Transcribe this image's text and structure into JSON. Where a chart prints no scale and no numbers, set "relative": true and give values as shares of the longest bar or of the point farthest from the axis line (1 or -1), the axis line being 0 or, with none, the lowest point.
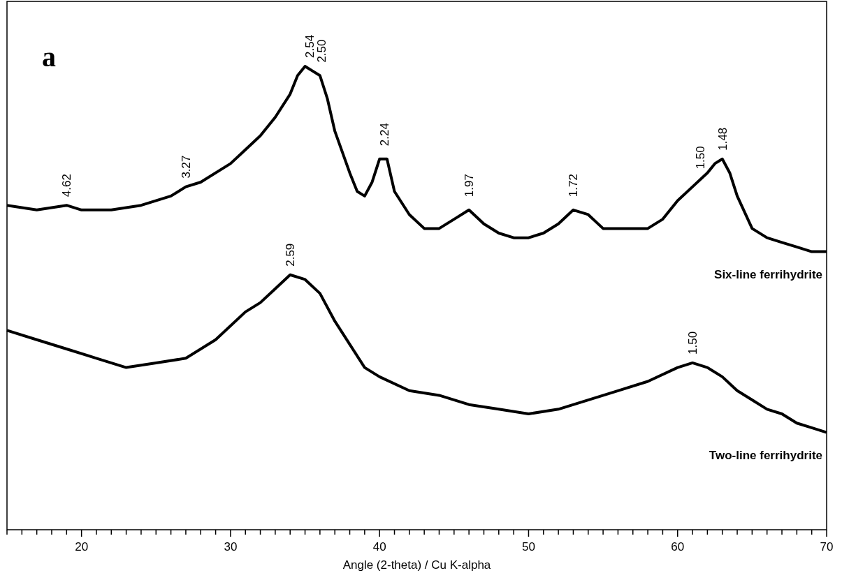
{
  "chart_data": {
    "type": "line",
    "relative": true,
    "xlabel": "Angle (2-theta) / Cu K-alpha",
    "xlim": [
      15,
      70
    ],
    "tick_labels": "x",
    "xticks": [
      {
        "value": 15,
        "label": null
      },
      {
        "value": 16,
        "label": null
      },
      {
        "value": 17,
        "label": null
      },
      {
        "value": 18,
        "label": null
      },
      {
        "value": 19,
        "label": null
      },
      20,
      {
        "value": 21,
        "label": null
      },
      {
        "value": 22,
        "label": null
      },
      {
        "value": 23,
        "label": null
      },
      {
        "value": 24,
        "label": null
      },
      {
        "value": 25,
        "label": null
      },
      {
        "value": 26,
        "label": null
      },
      {
        "value": 27,
        "label": null
      },
      {
        "value": 28,
        "label": null
      },
      {
        "value": 29,
        "label": null
      },
      30,
      {
        "value": 31,
        "label": null
      },
      {
        "value": 32,
        "label": null
      },
      {
        "value": 33,
        "label": null
      },
      {
        "value": 34,
        "label": null
      },
      {
        "value": 35,
        "label": null
      },
      {
        "value": 36,
        "label": null
      },
      {
        "value": 37,
        "label": null
      },
      {
        "value": 38,
        "label": null
      },
      {
        "value": 39,
        "label": null
      },
      40,
      {
        "value": 41,
        "label": null
      },
      {
        "value": 42,
        "label": null
      },
      {
        "value": 43,
        "label": null
      },
      {
        "value": 44,
        "label": null
      },
      {
        "value": 45,
        "label": null
      },
      {
        "value": 46,
        "label": null
      },
      {
        "value": 47,
        "label": null
      },
      {
        "value": 48,
        "label": null
      },
      {
        "value": 49,
        "label": null
      },
      50,
      {
        "value": 51,
        "label": null
      },
      {
        "value": 52,
        "label": null
      },
      {
        "value": 53,
        "label": null
      },
      {
        "value": 54,
        "label": null
      },
      {
        "value": 55,
        "label": null
      },
      {
        "value": 56,
        "label": null
      },
      {
        "value": 57,
        "label": null
      },
      {
        "value": 58,
        "label": null
      },
      {
        "value": 59,
        "label": null
      },
      60,
      {
        "value": 61,
        "label": null
      },
      {
        "value": 62,
        "label": null
      },
      {
        "value": 63,
        "label": null
      },
      {
        "value": 64,
        "label": null
      },
      {
        "value": 65,
        "label": null
      },
      {
        "value": 66,
        "label": null
      },
      {
        "value": 67,
        "label": null
      },
      {
        "value": 68,
        "label": null
      },
      {
        "value": 69,
        "label": null
      },
      70
    ],
    "series": [
      {
        "name": "Six-line ferrihydrite",
        "color": "#000000",
        "x": [
          15,
          17,
          19,
          20,
          22,
          24,
          26,
          27,
          28,
          30,
          31,
          32,
          33,
          34,
          34.5,
          35,
          35.5,
          36,
          36.5,
          37,
          38,
          38.5,
          39,
          39.5,
          40,
          40.5,
          41,
          42,
          43,
          44,
          45,
          46,
          47,
          48,
          49,
          50,
          51,
          52,
          53,
          54,
          55,
          56,
          57,
          58,
          59,
          60,
          61,
          62,
          62.5,
          63,
          63.5,
          64,
          65,
          66,
          67,
          68,
          69,
          70
        ],
        "values": [
          0.7,
          0.69,
          0.7,
          0.69,
          0.69,
          0.7,
          0.72,
          0.74,
          0.75,
          0.79,
          0.82,
          0.85,
          0.89,
          0.94,
          0.98,
          1.0,
          0.99,
          0.98,
          0.93,
          0.86,
          0.77,
          0.73,
          0.72,
          0.75,
          0.8,
          0.8,
          0.73,
          0.68,
          0.65,
          0.65,
          0.67,
          0.69,
          0.66,
          0.64,
          0.63,
          0.63,
          0.64,
          0.66,
          0.69,
          0.68,
          0.65,
          0.65,
          0.65,
          0.65,
          0.67,
          0.71,
          0.74,
          0.77,
          0.79,
          0.8,
          0.77,
          0.72,
          0.65,
          0.63,
          0.62,
          0.61,
          0.6,
          0.6
        ]
      },
      {
        "name": "Two-line ferrihydrite",
        "color": "#000000",
        "x": [
          15,
          17,
          19,
          21,
          23,
          25,
          27,
          29,
          31,
          32,
          33,
          34,
          35,
          36,
          37,
          38,
          39,
          40,
          42,
          44,
          46,
          48,
          50,
          52,
          54,
          56,
          58,
          60,
          61,
          62,
          63,
          64,
          65,
          66,
          67,
          68,
          69,
          70
        ],
        "values": [
          0.43,
          0.41,
          0.39,
          0.37,
          0.35,
          0.36,
          0.37,
          0.41,
          0.47,
          0.49,
          0.52,
          0.55,
          0.54,
          0.51,
          0.45,
          0.4,
          0.35,
          0.33,
          0.3,
          0.29,
          0.27,
          0.26,
          0.25,
          0.26,
          0.28,
          0.3,
          0.32,
          0.35,
          0.36,
          0.35,
          0.33,
          0.3,
          0.28,
          0.26,
          0.25,
          0.23,
          0.22,
          0.21
        ]
      }
    ],
    "annotations": [
      "a",
      {
        "text": "4.62",
        "x": 19,
        "y": 0.7
      },
      {
        "text": "3.27",
        "x": 27,
        "y": 0.74
      },
      {
        "text": "2.54",
        "x": 35.3,
        "y": 1.0
      },
      {
        "text": "2.50",
        "x": 36.1,
        "y": 0.99
      },
      {
        "text": "2.24",
        "x": 40.3,
        "y": 0.81
      },
      {
        "text": "1.97",
        "x": 46,
        "y": 0.7
      },
      {
        "text": "1.72",
        "x": 53,
        "y": 0.7
      },
      {
        "text": "1.50",
        "x": 61.5,
        "y": 0.76
      },
      {
        "text": "1.48",
        "x": 63,
        "y": 0.8
      },
      {
        "text": "2.59",
        "x": 34,
        "y": 0.55
      },
      {
        "text": "1.50",
        "x": 61,
        "y": 0.36
      }
    ]
  }
}
